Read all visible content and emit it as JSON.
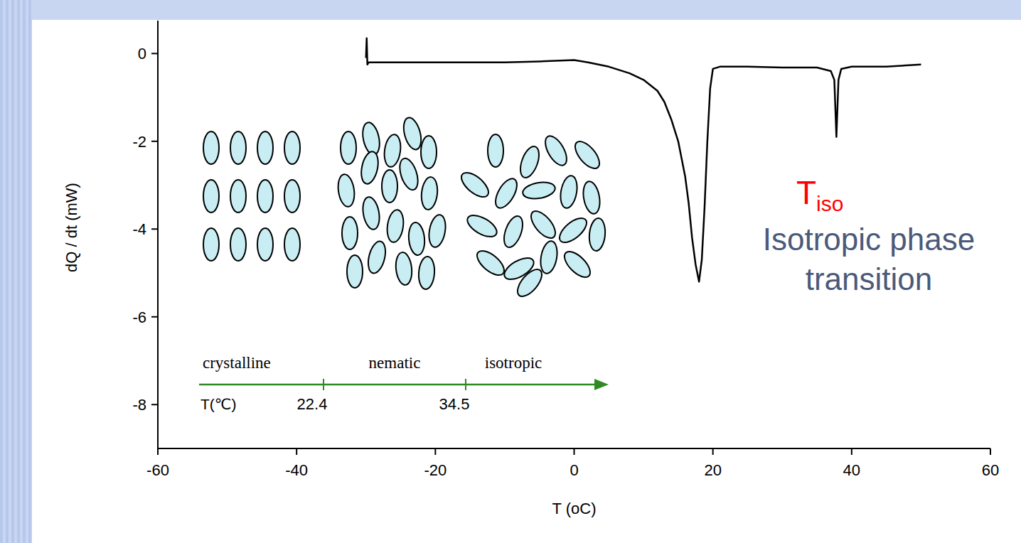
{
  "chart_data": {
    "type": "line",
    "x_label": "T (oC)",
    "y_label": "dQ / dt (mW)",
    "xlim": [
      -60,
      60
    ],
    "xticks": [
      -60,
      -40,
      -20,
      0,
      20,
      40,
      60
    ],
    "ylim": [
      -9,
      0.75
    ],
    "yticks": [
      -8,
      -6,
      -4,
      -2,
      0
    ],
    "series": [
      {
        "color": "#000000",
        "x": [
          -30,
          -29.9,
          -29.8,
          -29.6,
          -25,
          -20,
          -15,
          -10,
          -5,
          0,
          2,
          5,
          8,
          10,
          12,
          13,
          14,
          15,
          16,
          16.5,
          17,
          17.5,
          18,
          18.4,
          18.8,
          19.2,
          19.6,
          20,
          21,
          25,
          30,
          35,
          37,
          37.5,
          37.8,
          38.1,
          38.5,
          40,
          45,
          50
        ],
        "values": [
          -0.1,
          0.35,
          -0.25,
          -0.2,
          -0.2,
          -0.2,
          -0.2,
          -0.2,
          -0.18,
          -0.15,
          -0.2,
          -0.3,
          -0.45,
          -0.6,
          -0.85,
          -1.1,
          -1.5,
          -2.0,
          -2.8,
          -3.4,
          -4.2,
          -4.8,
          -5.2,
          -4.7,
          -3.5,
          -2.0,
          -0.8,
          -0.35,
          -0.3,
          -0.3,
          -0.32,
          -0.32,
          -0.4,
          -0.6,
          -1.9,
          -0.6,
          -0.35,
          -0.3,
          -0.3,
          -0.25
        ]
      }
    ],
    "annotations": [
      {
        "text": "T",
        "subscript": "iso",
        "color": "#ff0000"
      },
      {
        "text": "Isotropic phase transition",
        "color": "#4a5a7a"
      }
    ],
    "inset": {
      "phases": [
        "crystalline",
        "nematic",
        "isotropic"
      ],
      "axis_label": "T(℃)",
      "transitions": [
        22.4,
        34.5
      ],
      "color": "#2e8b22"
    }
  }
}
